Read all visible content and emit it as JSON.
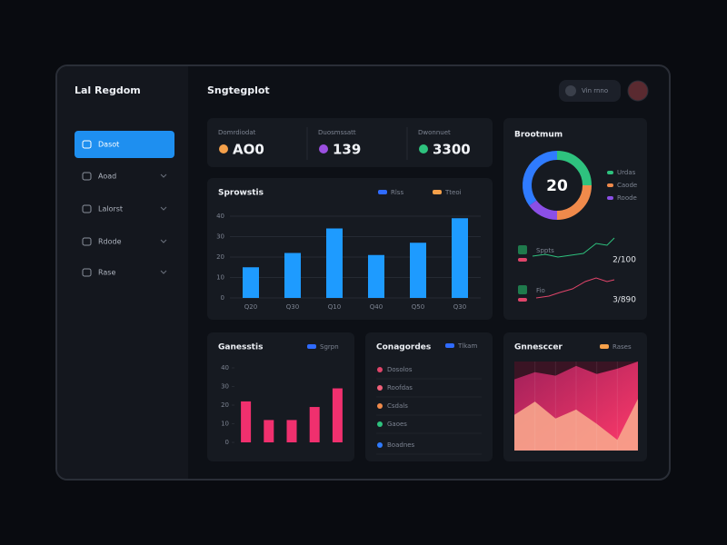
{
  "app": {
    "brand": "Lal Regdom",
    "page_title": "Sngtegplot",
    "user": "Vin rnno"
  },
  "sidebar": {
    "items": [
      {
        "label": "Dasot"
      },
      {
        "label": "Aoad"
      },
      {
        "label": "Lalorst"
      },
      {
        "label": "Rdode"
      },
      {
        "label": "Rase"
      }
    ]
  },
  "kpis": [
    {
      "label": "Domrdiodat",
      "value": "AO0",
      "color": "#f5a04a"
    },
    {
      "label": "Duosmssatt",
      "value": "139",
      "color": "#9b4fe0"
    },
    {
      "label": "Dwonnuet",
      "value": "3300",
      "color": "#2ec27e"
    }
  ],
  "chart_data": [
    {
      "type": "bar",
      "title": "Sprowstis",
      "color": "#1e9bff",
      "legend": [
        {
          "name": "Rlss",
          "color": "#2f6bff"
        },
        {
          "name": "Tteoi",
          "color": "#f5a04a"
        }
      ],
      "categories": [
        "Q20",
        "Q30",
        "Q10",
        "Q40",
        "Q50",
        "Q30"
      ],
      "values": [
        15,
        22,
        34,
        21,
        27,
        39
      ],
      "ylim": [
        0,
        40
      ],
      "yticks": [
        0,
        10,
        20,
        30,
        40
      ],
      "grid": true
    },
    {
      "type": "pie",
      "title": "Brootmum",
      "center_label": "20",
      "categories": [
        "Urdas",
        "Caode",
        "Roode",
        null
      ],
      "values": [
        25,
        25,
        15,
        35
      ],
      "colors": [
        "#2ec27e",
        "#f08a4b",
        "#8b4fe6",
        "#2f7bff"
      ]
    },
    {
      "type": "bar",
      "title": "Ganesstis",
      "color": "#f0306e",
      "legend": [
        {
          "name": "Sgrpn",
          "color": "#2f6bff"
        }
      ],
      "categories": [
        null,
        null,
        null,
        null,
        null
      ],
      "values": [
        22,
        12,
        12,
        19,
        29
      ],
      "ylim": [
        0,
        40
      ],
      "yticks": [
        0,
        10,
        20,
        30,
        40
      ],
      "grid": false
    },
    {
      "type": "area",
      "title": "Gnnesccer",
      "series": [
        {
          "name": "Rases",
          "color": "#e0306a",
          "values": [
            80,
            88,
            84,
            95,
            86,
            92,
            100
          ]
        },
        {
          "color": "#f7a58c",
          "values": [
            40,
            55,
            36,
            46,
            30,
            12,
            58
          ]
        }
      ],
      "ylim": [
        0,
        100
      ]
    }
  ],
  "stats": [
    {
      "label": "Sppts",
      "value": "2/100"
    },
    {
      "label": "Fio",
      "value": "3/890"
    }
  ],
  "list": {
    "title": "Conagordes",
    "legend": "Tlkam",
    "items": [
      {
        "label": "Dosolos",
        "color": "#e0456a"
      },
      {
        "label": "Roofdas",
        "color": "#f0607a"
      },
      {
        "label": "Csdals",
        "color": "#f08a4b"
      },
      {
        "label": "Gaoes",
        "color": "#2ec27e"
      },
      {
        "label": "Boadnes",
        "color": "#2f7bff"
      }
    ]
  }
}
